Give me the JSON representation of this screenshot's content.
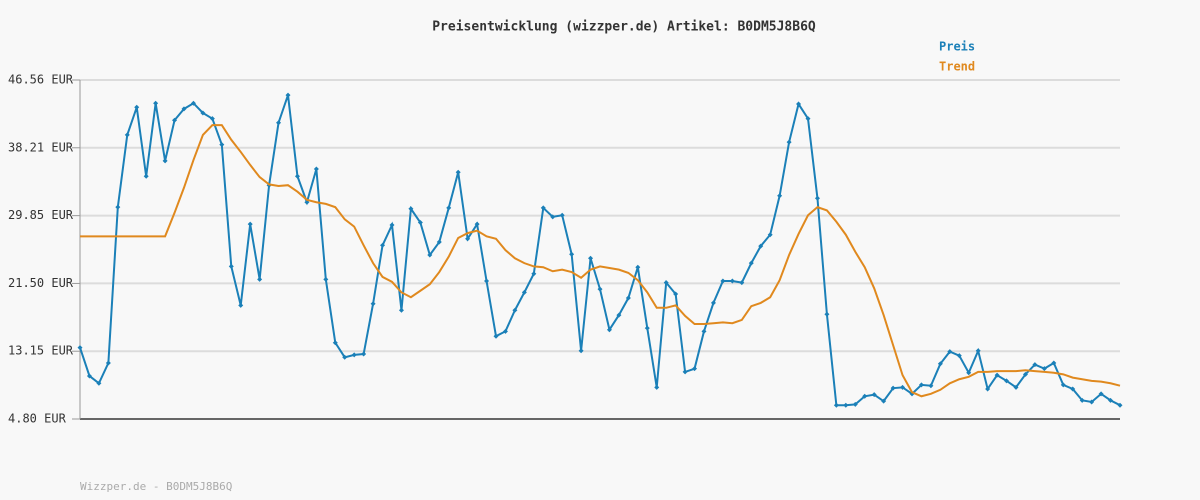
{
  "chart_data": {
    "type": "line",
    "title": "Preisentwicklung (wizzper.de) Artikel: B0DM5J8B6Q",
    "footer": "Wizzper.de - B0DM5J8B6Q",
    "ylim": [
      4.8,
      46.56
    ],
    "yticks": [
      {
        "value": 4.8,
        "label": "4.80 EUR"
      },
      {
        "value": 13.15,
        "label": "13.15 EUR"
      },
      {
        "value": 21.5,
        "label": "21.50 EUR"
      },
      {
        "value": 29.85,
        "label": "29.85 EUR"
      },
      {
        "value": 38.21,
        "label": "38.21 EUR"
      },
      {
        "value": 46.56,
        "label": "46.56 EUR"
      }
    ],
    "grid": true,
    "legend": "top-right",
    "series": [
      {
        "name": "Preis",
        "color": "#1b80b8",
        "markers": true,
        "values": [
          13.6,
          10.1,
          9.2,
          11.7,
          30.9,
          39.8,
          43.2,
          34.7,
          43.7,
          36.6,
          41.6,
          43.0,
          43.7,
          42.5,
          41.8,
          38.6,
          23.6,
          18.8,
          28.8,
          22.0,
          33.6,
          41.3,
          44.7,
          34.7,
          31.5,
          35.6,
          22.0,
          14.2,
          12.4,
          12.7,
          12.8,
          19.0,
          26.2,
          28.7,
          18.2,
          30.7,
          29.0,
          25.0,
          26.6,
          30.8,
          35.2,
          27.0,
          28.8,
          21.8,
          15.0,
          15.6,
          18.2,
          20.4,
          22.7,
          30.8,
          29.7,
          29.9,
          25.1,
          13.2,
          24.6,
          20.8,
          15.8,
          17.6,
          19.7,
          23.5,
          16.0,
          8.7,
          21.6,
          20.2,
          10.6,
          11.0,
          15.6,
          19.1,
          21.8,
          21.8,
          21.6,
          24.0,
          26.1,
          27.5,
          32.3,
          38.9,
          43.6,
          41.8,
          32.0,
          17.7,
          6.5,
          6.5,
          6.6,
          7.6,
          7.8,
          7.0,
          8.6,
          8.7,
          7.9,
          9.0,
          8.9,
          11.6,
          13.1,
          12.6,
          10.5,
          13.2,
          8.5,
          10.2,
          9.5,
          8.7,
          10.3,
          11.5,
          11.0,
          11.7,
          9.0,
          8.5,
          7.1,
          6.9,
          7.9,
          7.1,
          6.5
        ]
      },
      {
        "name": "Trend",
        "color": "#e0891e",
        "markers": false,
        "values": [
          27.3,
          27.3,
          27.3,
          27.3,
          27.3,
          27.3,
          27.3,
          27.3,
          27.3,
          27.3,
          30.2,
          33.3,
          36.7,
          39.8,
          41.0,
          41.0,
          39.2,
          37.7,
          36.1,
          34.6,
          33.7,
          33.5,
          33.6,
          32.8,
          31.8,
          31.5,
          31.3,
          30.9,
          29.4,
          28.5,
          26.2,
          24.0,
          22.3,
          21.7,
          20.4,
          19.8,
          20.6,
          21.4,
          22.9,
          24.8,
          27.1,
          27.7,
          28.0,
          27.3,
          27.0,
          25.6,
          24.6,
          24.0,
          23.6,
          23.5,
          23.0,
          23.2,
          22.9,
          22.2,
          23.2,
          23.6,
          23.4,
          23.2,
          22.8,
          21.9,
          20.4,
          18.5,
          18.5,
          18.8,
          17.5,
          16.5,
          16.5,
          16.6,
          16.7,
          16.6,
          17.0,
          18.7,
          19.1,
          19.8,
          21.9,
          25.0,
          27.6,
          29.9,
          30.9,
          30.5,
          29.1,
          27.5,
          25.4,
          23.5,
          20.9,
          17.6,
          13.9,
          10.2,
          8.1,
          7.6,
          7.9,
          8.4,
          9.2,
          9.7,
          10.0,
          10.6,
          10.6,
          10.7,
          10.7,
          10.7,
          10.8,
          10.7,
          10.6,
          10.5,
          10.3,
          9.9,
          9.7,
          9.5,
          9.4,
          9.2,
          8.9
        ]
      }
    ]
  }
}
